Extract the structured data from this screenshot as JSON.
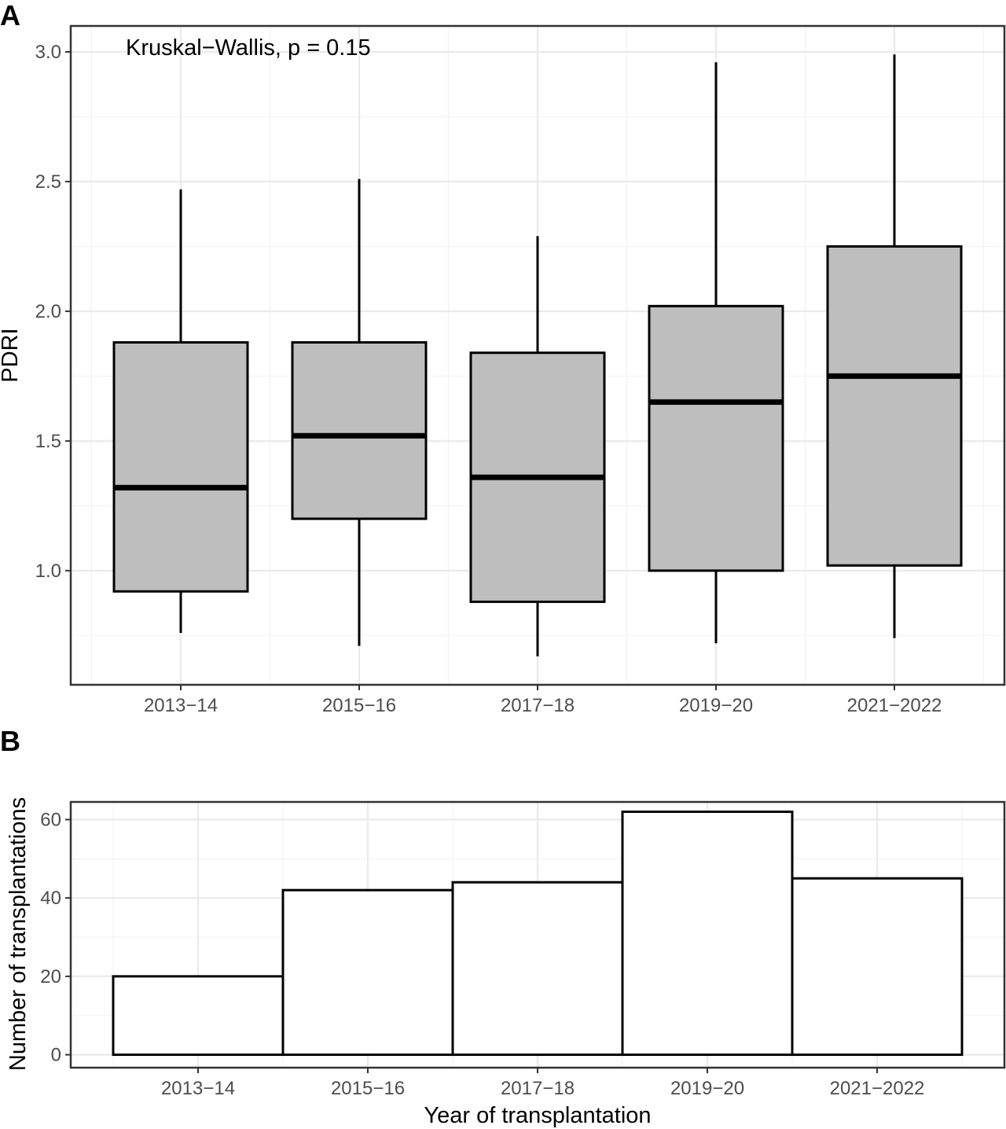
{
  "chart_data": [
    {
      "type": "box",
      "panel_label": "A",
      "title": "",
      "xlabel": "",
      "ylabel": "PDRI",
      "annotation": "Kruskal−Wallis, p = 0.15",
      "categories": [
        "2013−14",
        "2015−16",
        "2017−18",
        "2019−20",
        "2021−2022"
      ],
      "boxes": [
        {
          "whisker_low": 0.76,
          "q1": 0.92,
          "median": 1.32,
          "q3": 1.88,
          "whisker_high": 2.47
        },
        {
          "whisker_low": 0.71,
          "q1": 1.2,
          "median": 1.52,
          "q3": 1.88,
          "whisker_high": 2.51
        },
        {
          "whisker_low": 0.67,
          "q1": 0.88,
          "median": 1.36,
          "q3": 1.84,
          "whisker_high": 2.29
        },
        {
          "whisker_low": 0.72,
          "q1": 1.0,
          "median": 1.65,
          "q3": 2.02,
          "whisker_high": 2.96
        },
        {
          "whisker_low": 0.74,
          "q1": 1.02,
          "median": 1.75,
          "q3": 2.25,
          "whisker_high": 2.99
        }
      ],
      "yticks": [
        "1.0",
        "1.5",
        "2.0",
        "2.5",
        "3.0"
      ],
      "ylim": [
        0.56,
        3.1
      ],
      "grid": true,
      "box_fill": "#bebebe"
    },
    {
      "type": "bar",
      "panel_label": "B",
      "title": "",
      "xlabel": "Year of transplantation",
      "ylabel": "Number of transplantations",
      "categories": [
        "2013−14",
        "2015−16",
        "2017−18",
        "2019−20",
        "2021−2022"
      ],
      "values": [
        20,
        42,
        44,
        62,
        45
      ],
      "yticks": [
        "0",
        "20",
        "40",
        "60"
      ],
      "ylim": [
        -3.3,
        64.5
      ],
      "grid": true,
      "bar_fill": "#ffffff"
    }
  ]
}
